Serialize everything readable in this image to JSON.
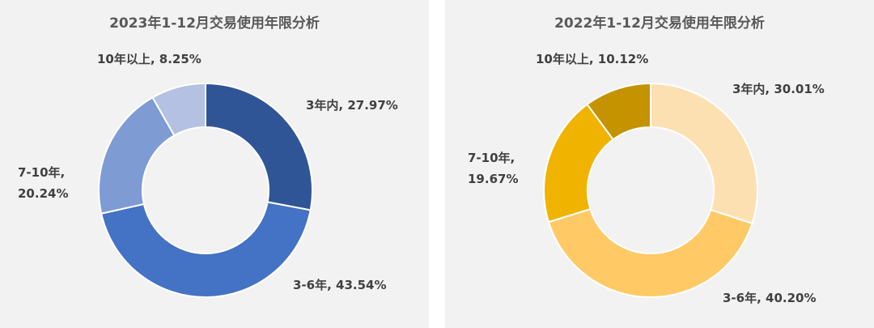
{
  "chart_data": [
    {
      "type": "pie",
      "donut": true,
      "title": "2023年1-12月交易使用年限分析",
      "categories": [
        "3年内",
        "3-6年",
        "7-10年",
        "10年以上"
      ],
      "values": [
        27.97,
        43.54,
        20.24,
        8.25
      ],
      "value_labels": [
        "3年内, 27.97%",
        "3-6年, 43.54%",
        "7-10年, 20.24%",
        "10年以上, 8.25%"
      ],
      "colors": [
        "#2f5597",
        "#4472c4",
        "#7f9bd4",
        "#b4c1e3"
      ]
    },
    {
      "type": "pie",
      "donut": true,
      "title": "2022年1-12月交易使用年限分析",
      "categories": [
        "3年内",
        "3-6年",
        "7-10年",
        "10年以上"
      ],
      "values": [
        30.01,
        40.2,
        19.67,
        10.12
      ],
      "value_labels": [
        "3年内, 30.01%",
        "3-6年, 40.20%",
        "7-10年, 19.67%",
        "10年以上, 10.12%"
      ],
      "colors": [
        "#fde0b2",
        "#ffc966",
        "#efb300",
        "#c59200"
      ]
    }
  ]
}
